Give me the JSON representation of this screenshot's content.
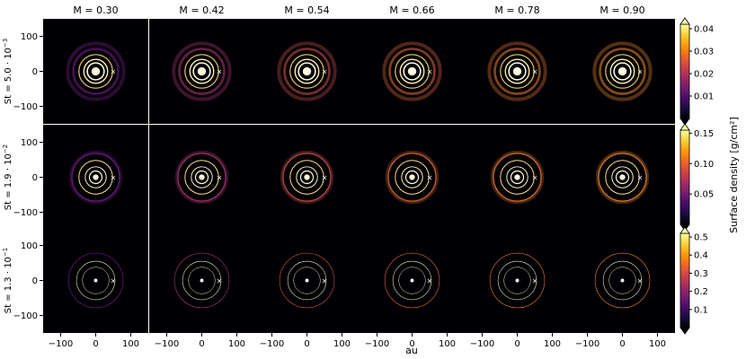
{
  "chart_data": {
    "type": "heatmap",
    "description_free": true,
    "columns": [
      "M = 0.30",
      "M = 0.42",
      "M = 0.54",
      "M = 0.66",
      "M = 0.78",
      "M = 0.90"
    ],
    "rows": [
      {
        "label": "St = 5.0 · 10",
        "exp": "−3",
        "colorbar": {
          "ticks": [
            0.01,
            0.02,
            0.03,
            0.04
          ],
          "range": [
            0,
            0.042
          ],
          "tick_labels": [
            "0.01",
            "0.02",
            "0.03",
            "0.04"
          ]
        }
      },
      {
        "label": "St = 1.9 · 10",
        "exp": "−2",
        "colorbar": {
          "ticks": [
            0.05,
            0.1,
            0.15
          ],
          "range": [
            0,
            0.155
          ],
          "tick_labels": [
            "0.05",
            "0.10",
            "0.15"
          ]
        }
      },
      {
        "label": "St = 1.3 · 10",
        "exp": "−1",
        "colorbar": {
          "ticks": [
            0.1,
            0.2,
            0.3,
            0.4,
            0.5
          ],
          "range": [
            0,
            0.52
          ],
          "tick_labels": [
            "0.1",
            "0.2",
            "0.3",
            "0.4",
            "0.5"
          ]
        }
      }
    ],
    "xlabel": "au",
    "colorbar_label": "Surface density [g/cm²]",
    "x_ticks": [
      -100,
      0,
      100
    ],
    "x_tick_labels": [
      "−100",
      "0",
      "100"
    ],
    "y_ticks": [
      100,
      0,
      -100
    ],
    "y_tick_labels": [
      "100",
      "0",
      "−100"
    ],
    "xlim": [
      -150,
      150
    ],
    "ylim": [
      -150,
      150
    ],
    "planet_marker": "×",
    "planet_position_au": [
      50,
      0
    ],
    "colormap": "inferno"
  }
}
